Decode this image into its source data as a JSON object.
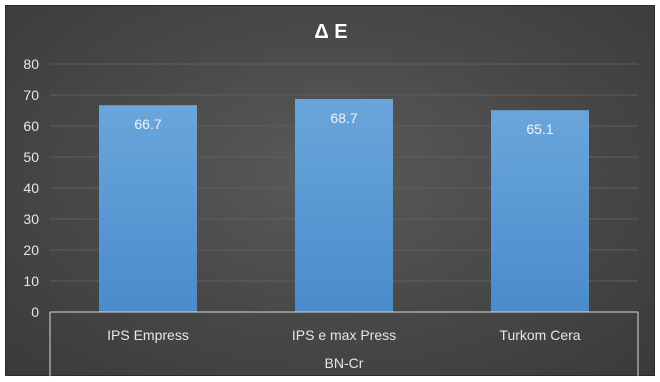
{
  "chart_data": {
    "type": "bar",
    "title": "Δ E",
    "categories": [
      "IPS Empress",
      "IPS e max Press",
      "Turkom Cera"
    ],
    "group_label": "BN-Cr",
    "series": [
      {
        "values": [
          66.7,
          68.7,
          65.1
        ]
      }
    ],
    "data_labels": [
      "66.7",
      "68.7",
      "65.1"
    ],
    "ylim": [
      0,
      80
    ],
    "yticks": [
      0,
      10,
      20,
      30,
      40,
      50,
      60,
      70,
      80
    ],
    "grid": true,
    "xlabel": "",
    "ylabel": ""
  },
  "colors": {
    "bar_top": "#6aa6db",
    "bar_bottom": "#4a8bcc",
    "text": "#e6e6e6",
    "grid": "#5e5e5e"
  }
}
